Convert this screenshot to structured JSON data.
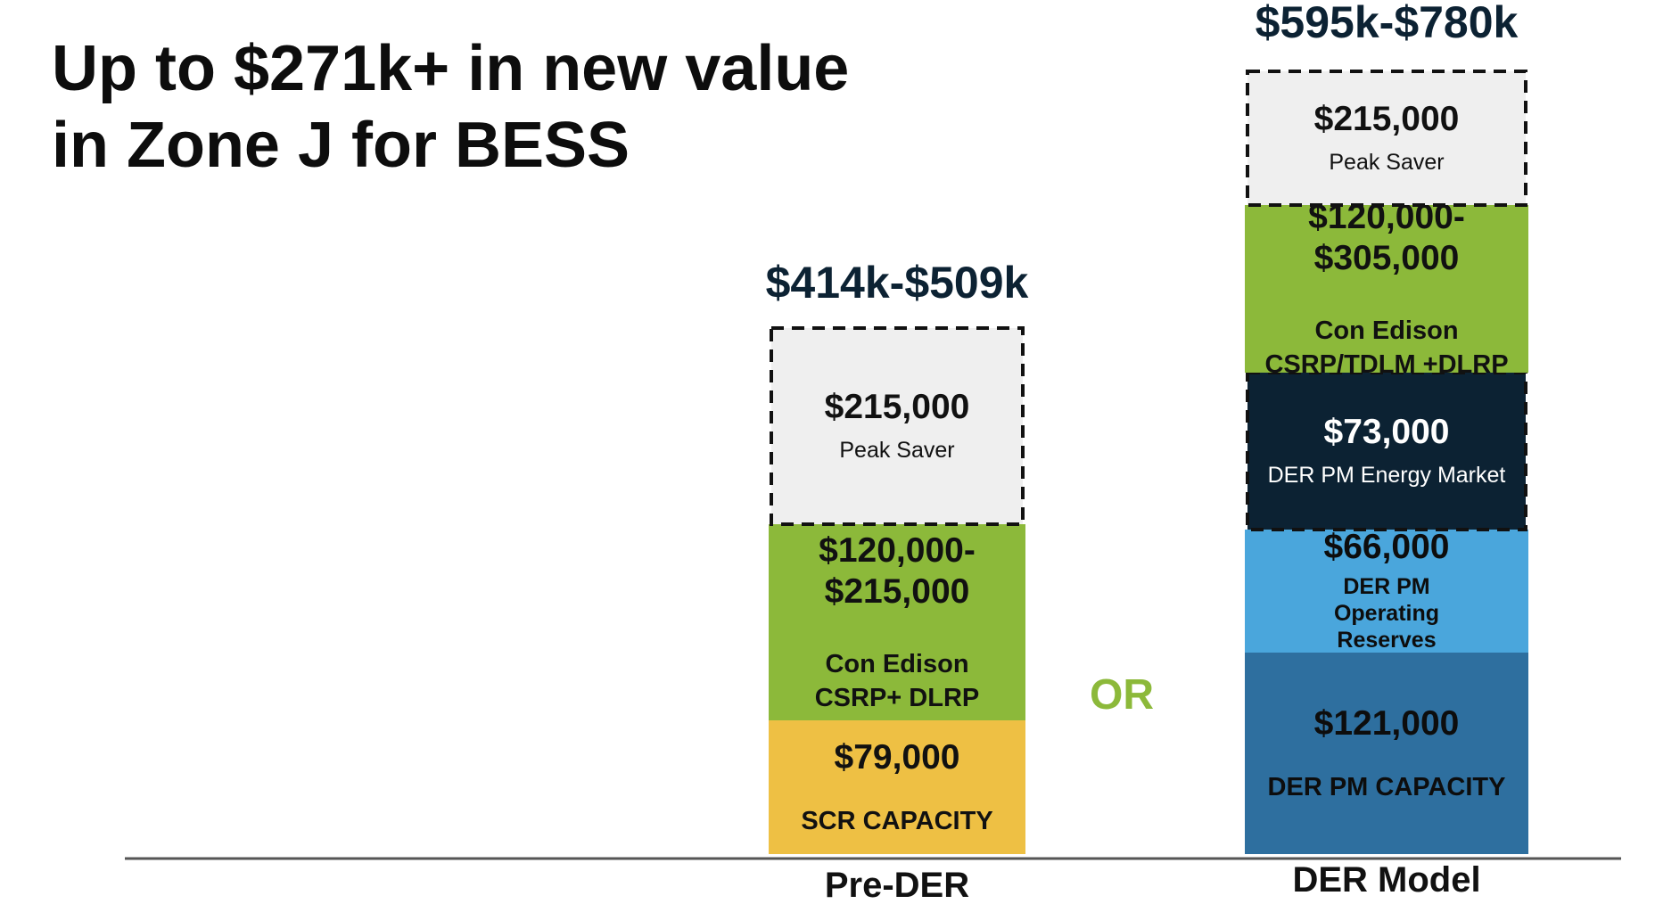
{
  "slide": {
    "title_line1": "Up to $271k+ in new value",
    "title_line2": "in Zone J for BESS",
    "or_text": "OR"
  },
  "colors": {
    "peak_saver": "#efefef",
    "con_edison": "#8cb93a",
    "scr_capacity": "#eec044",
    "der_energy": "#0c2233",
    "der_reserves": "#4aa6dc",
    "der_capacity": "#2e6f9f",
    "total_label": "#0c2233",
    "or": "#8cb93a"
  },
  "chart_data": {
    "type": "bar",
    "stacked": true,
    "categories": [
      "Pre-DER",
      "DER Model"
    ],
    "totals": [
      "$414k-$509k",
      "$595k-$780k"
    ],
    "stacks": [
      {
        "category": "Pre-DER",
        "segments": [
          {
            "value_label": "$79,000",
            "desc": "SCR CAPACITY",
            "color": "#eec044",
            "text_color": "#111111",
            "dashed": false,
            "value": 79000
          },
          {
            "value_label": "$120,000-\n$215,000",
            "desc": "Con Edison\nCSRP+ DLRP",
            "color": "#8cb93a",
            "text_color": "#111111",
            "dashed": false,
            "value_min": 120000,
            "value_max": 215000
          },
          {
            "value_label": "$215,000",
            "desc": "Peak Saver",
            "color": "#efefef",
            "text_color": "#111111",
            "dashed": true,
            "value": 215000
          }
        ]
      },
      {
        "category": "DER Model",
        "segments": [
          {
            "value_label": "$121,000",
            "desc": "DER PM CAPACITY",
            "color": "#2e6f9f",
            "text_color": "#0d0d0d",
            "dashed": false,
            "value": 121000
          },
          {
            "value_label": "$66,000",
            "desc": "DER PM\nOperating\nReserves",
            "color": "#4aa6dc",
            "text_color": "#0d0d0d",
            "dashed": false,
            "value": 66000
          },
          {
            "value_label": "$73,000",
            "desc": "DER PM Energy Market",
            "color": "#0c2233",
            "text_color": "#ffffff",
            "dashed": true,
            "value": 73000
          },
          {
            "value_label": "$120,000-\n$305,000",
            "desc": "Con Edison\nCSRP/TDLM +DLRP",
            "color": "#8cb93a",
            "text_color": "#111111",
            "dashed": false,
            "value_min": 120000,
            "value_max": 305000
          },
          {
            "value_label": "$215,000",
            "desc": "Peak Saver",
            "color": "#efefef",
            "text_color": "#111111",
            "dashed": true,
            "value": 215000
          }
        ]
      }
    ]
  }
}
